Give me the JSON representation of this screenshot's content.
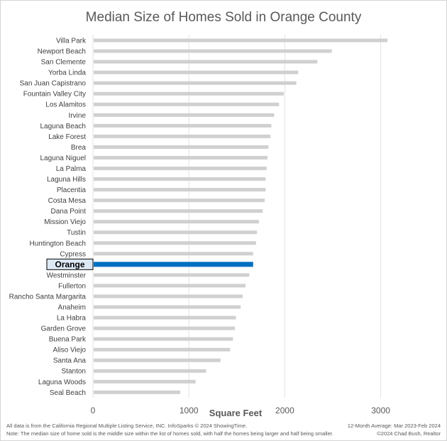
{
  "chart_data": {
    "type": "bar",
    "orientation": "horizontal",
    "title": "Median Size of Homes Sold in Orange County",
    "xlabel": "Square Feet",
    "ylabel": "",
    "xlim": [
      0,
      3000
    ],
    "xticks": [
      0,
      1000,
      2000,
      3000
    ],
    "grid": true,
    "highlight": "Orange",
    "highlight_color": "#0070c0",
    "bar_color": "#d0d0d0",
    "categories": [
      "Villa Park",
      "Newport Beach",
      "San Clemente",
      "Yorba Linda",
      "San Juan Capistrano",
      "Fountain Valley City",
      "Los Alamitos",
      "Irvine",
      "Laguna Beach",
      "Lake Forest",
      "Brea",
      "Laguna Niguel",
      "La Palma",
      "Laguna Hills",
      "Placentia",
      "Costa Mesa",
      "Dana Point",
      "Mission Viejo",
      "Tustin",
      "Huntington Beach",
      "Cypress",
      "Orange",
      "Westminster",
      "Fullerton",
      "Rancho Santa Margarita",
      "Anaheim",
      "La Habra",
      "Garden Grove",
      "Buena Park",
      "Aliso Viejo",
      "Santa Ana",
      "Stanton",
      "Laguna Woods",
      "Seal Beach"
    ],
    "values": [
      3070,
      2490,
      2340,
      2140,
      2120,
      1990,
      1940,
      1890,
      1860,
      1850,
      1830,
      1820,
      1810,
      1800,
      1800,
      1790,
      1770,
      1730,
      1710,
      1700,
      1670,
      1670,
      1630,
      1590,
      1560,
      1540,
      1490,
      1480,
      1460,
      1430,
      1330,
      1180,
      1070,
      910
    ]
  },
  "footer": {
    "source": "All data is from the California Regional Multiple Listing Service, INC. InfoSparks © 2024 ShowingTime.",
    "period": "12-Month Average: Mar 2023-Feb 2024",
    "note": "Note: The median size of home sold is the middle size within the list of homes sold, with half the homes being larger and half being smaller.",
    "credit": "©2024 Chad Bush, Realtor"
  }
}
